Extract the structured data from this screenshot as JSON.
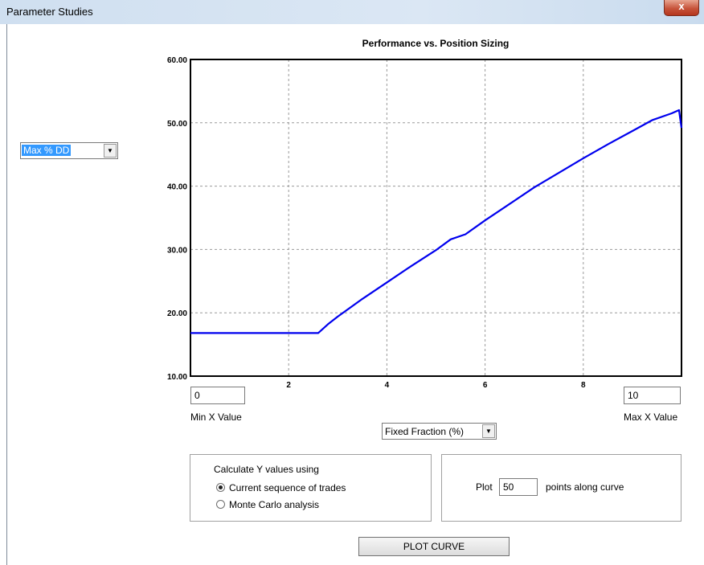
{
  "window": {
    "title": "Parameter Studies",
    "close_label": "x"
  },
  "metric_select": {
    "value": "Max % DD"
  },
  "chart_data": {
    "type": "line",
    "title": "Performance vs. Position Sizing",
    "xlabel": "",
    "ylabel": "",
    "xlim": [
      0,
      10
    ],
    "ylim": [
      10,
      60
    ],
    "x_ticks": [
      2,
      4,
      6,
      8
    ],
    "y_ticks": [
      "10.00",
      "20.00",
      "30.00",
      "40.00",
      "50.00",
      "60.00"
    ],
    "grid": true,
    "series": [
      {
        "color": "#0000ee",
        "points": [
          [
            0,
            16.8
          ],
          [
            1,
            16.8
          ],
          [
            2,
            16.8
          ],
          [
            2.6,
            16.8
          ],
          [
            2.8,
            18.2
          ],
          [
            3,
            19.4
          ],
          [
            3.5,
            22.2
          ],
          [
            4,
            24.8
          ],
          [
            4.5,
            27.4
          ],
          [
            5,
            29.9
          ],
          [
            5.3,
            31.6
          ],
          [
            5.6,
            32.4
          ],
          [
            6,
            34.6
          ],
          [
            6.5,
            37.2
          ],
          [
            7,
            39.8
          ],
          [
            7.5,
            42.1
          ],
          [
            8,
            44.4
          ],
          [
            8.5,
            46.6
          ],
          [
            9,
            48.7
          ],
          [
            9.4,
            50.4
          ],
          [
            9.8,
            51.5
          ],
          [
            9.95,
            52.0
          ],
          [
            10,
            49.2
          ]
        ]
      }
    ]
  },
  "min_x": {
    "value": "0",
    "label": "Min X Value"
  },
  "max_x": {
    "value": "10",
    "label": "Max X Value"
  },
  "x_param_select": {
    "value": "Fixed Fraction (%)"
  },
  "calc_group": {
    "heading": "Calculate Y values using",
    "options": [
      {
        "label": "Current sequence of trades",
        "selected": true
      },
      {
        "label": "Monte Carlo analysis",
        "selected": false
      }
    ]
  },
  "plot_group": {
    "prefix": "Plot",
    "points": "50",
    "suffix": "points along curve"
  },
  "plot_button": {
    "label": "PLOT CURVE"
  },
  "colors": {
    "curve": "#0000ee",
    "selection": "#3399ff",
    "close_button": "#c7543b"
  }
}
